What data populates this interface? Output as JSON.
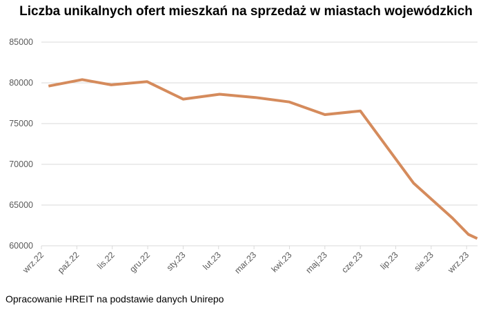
{
  "chart_data": {
    "type": "line",
    "title": "Liczba unikalnych ofert mieszkań na sprzedaż w miastach wojewódzkich",
    "source": "Opracowanie HREIT na podstawie danych Unirepo",
    "xlabel": "",
    "ylabel": "",
    "ylim": [
      60000,
      85000
    ],
    "yticks": [
      60000,
      65000,
      70000,
      75000,
      80000,
      85000
    ],
    "xtick_labels": [
      "wrz.22",
      "paź.22",
      "lis.22",
      "gru.22",
      "sty.23",
      "lut.23",
      "mar.23",
      "kwi.23",
      "maj.23",
      "cze.23",
      "lip.23",
      "sie.23",
      "wrz.23"
    ],
    "x_unit": "months since wrz.22",
    "xlim": [
      0,
      12.3
    ],
    "grid": true,
    "legend": "none",
    "color": "#D58B5C",
    "series": [
      {
        "name": "Liczba ofert",
        "x": [
          0.2,
          1.15,
          1.97,
          2.98,
          4.0,
          5.03,
          6.04,
          7.0,
          8.0,
          9.0,
          10.5,
          11.6,
          12.05,
          12.3
        ],
        "values": [
          79600,
          80400,
          79750,
          80150,
          78000,
          78600,
          78200,
          77650,
          76100,
          76550,
          67700,
          63400,
          61400,
          60900
        ]
      }
    ]
  }
}
